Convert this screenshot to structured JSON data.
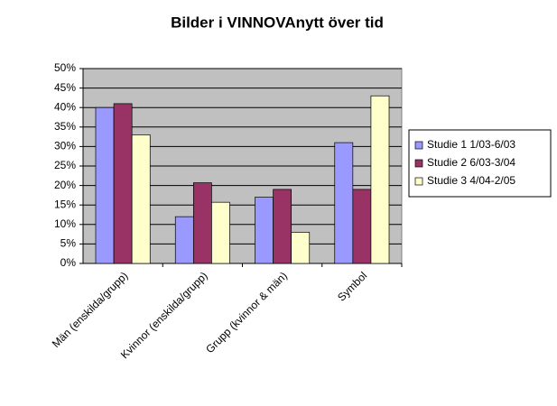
{
  "chart_data": {
    "type": "bar",
    "title": "Bilder i VINNOVAnytt över tid",
    "categories": [
      "Män (enskilda/grupp)",
      "Kvinnor (enskilda/grupp)",
      "Grupp (kvinnor & män)",
      "Symbol"
    ],
    "series": [
      {
        "name": "Studie 1 1/03-6/03",
        "color": "#9999ff",
        "values": [
          40,
          12,
          17,
          31
        ]
      },
      {
        "name": "Studie 2 6/03-3/04",
        "color": "#993366",
        "values": [
          41,
          20.7,
          19,
          19
        ]
      },
      {
        "name": "Studie 3 4/04-2/05",
        "color": "#ffffcc",
        "values": [
          33,
          15.7,
          8,
          43
        ]
      }
    ],
    "ylim": [
      0,
      50
    ],
    "yticks": [
      {
        "value": 0,
        "label": "0%"
      },
      {
        "value": 5,
        "label": "5%"
      },
      {
        "value": 10,
        "label": "10%"
      },
      {
        "value": 15,
        "label": "15%"
      },
      {
        "value": 20,
        "label": "20%"
      },
      {
        "value": 25,
        "label": "25%"
      },
      {
        "value": 30,
        "label": "30%"
      },
      {
        "value": 35,
        "label": "35%"
      },
      {
        "value": 40,
        "label": "40%"
      },
      {
        "value": 45,
        "label": "45%"
      },
      {
        "value": 50,
        "label": "50%"
      }
    ],
    "grid": true,
    "legend": "right"
  }
}
